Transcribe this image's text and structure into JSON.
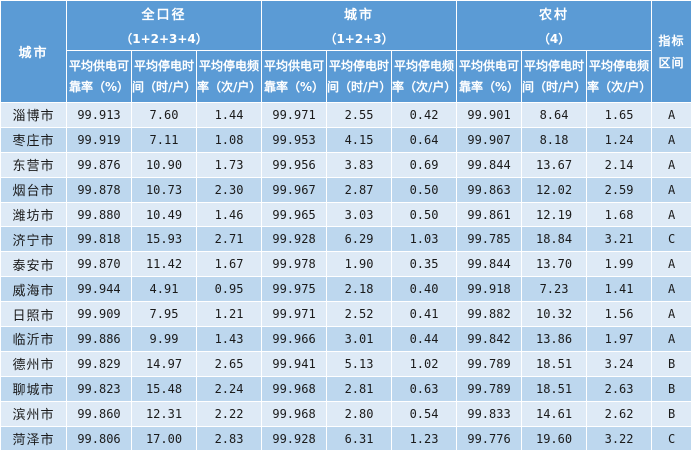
{
  "chart_data": {
    "type": "table",
    "corner_header": "城市",
    "column_groups": [
      {
        "title": "全口径",
        "subtitle": "（1+2+3+4）"
      },
      {
        "title": "城市",
        "subtitle": "（1+2+3）"
      },
      {
        "title": "农村",
        "subtitle": "（4）"
      }
    ],
    "metric_headers": [
      {
        "full": "平均供电可靠率（%）",
        "line1": "平均供电可",
        "line2": "靠率（%）"
      },
      {
        "full": "平均停电时间（时/户）",
        "line1": "平均停电时",
        "line2": "间（时/户）"
      },
      {
        "full": "平均停电频率（次/户）",
        "line1": "平均停电频",
        "line2": "率（次/户）"
      }
    ],
    "index_header": {
      "full": "指标区间",
      "line1": "指标",
      "line2": "区间"
    },
    "rows": [
      {
        "city": "淄博市",
        "values": [
          "99.913",
          "7.60",
          "1.44",
          "99.971",
          "2.55",
          "0.42",
          "99.901",
          "8.64",
          "1.65"
        ],
        "grade": "A"
      },
      {
        "city": "枣庄市",
        "values": [
          "99.919",
          "7.11",
          "1.08",
          "99.953",
          "4.15",
          "0.64",
          "99.907",
          "8.18",
          "1.24"
        ],
        "grade": "A"
      },
      {
        "city": "东营市",
        "values": [
          "99.876",
          "10.90",
          "1.73",
          "99.956",
          "3.83",
          "0.69",
          "99.844",
          "13.67",
          "2.14"
        ],
        "grade": "A"
      },
      {
        "city": "烟台市",
        "values": [
          "99.878",
          "10.73",
          "2.30",
          "99.967",
          "2.87",
          "0.50",
          "99.863",
          "12.02",
          "2.59"
        ],
        "grade": "A"
      },
      {
        "city": "潍坊市",
        "values": [
          "99.880",
          "10.49",
          "1.46",
          "99.965",
          "3.03",
          "0.50",
          "99.861",
          "12.19",
          "1.68"
        ],
        "grade": "A"
      },
      {
        "city": "济宁市",
        "values": [
          "99.818",
          "15.93",
          "2.71",
          "99.928",
          "6.29",
          "1.03",
          "99.785",
          "18.84",
          "3.21"
        ],
        "grade": "C"
      },
      {
        "city": "泰安市",
        "values": [
          "99.870",
          "11.42",
          "1.67",
          "99.978",
          "1.90",
          "0.35",
          "99.844",
          "13.70",
          "1.99"
        ],
        "grade": "A"
      },
      {
        "city": "威海市",
        "values": [
          "99.944",
          "4.91",
          "0.95",
          "99.975",
          "2.18",
          "0.40",
          "99.918",
          "7.23",
          "1.41"
        ],
        "grade": "A"
      },
      {
        "city": "日照市",
        "values": [
          "99.909",
          "7.95",
          "1.21",
          "99.971",
          "2.52",
          "0.41",
          "99.882",
          "10.32",
          "1.56"
        ],
        "grade": "A"
      },
      {
        "city": "临沂市",
        "values": [
          "99.886",
          "9.99",
          "1.43",
          "99.966",
          "3.01",
          "0.44",
          "99.842",
          "13.86",
          "1.97"
        ],
        "grade": "A"
      },
      {
        "city": "德州市",
        "values": [
          "99.829",
          "14.97",
          "2.65",
          "99.941",
          "5.13",
          "1.02",
          "99.789",
          "18.51",
          "3.24"
        ],
        "grade": "B"
      },
      {
        "city": "聊城市",
        "values": [
          "99.823",
          "15.48",
          "2.24",
          "99.968",
          "2.81",
          "0.63",
          "99.789",
          "18.51",
          "2.63"
        ],
        "grade": "B"
      },
      {
        "city": "滨州市",
        "values": [
          "99.860",
          "12.31",
          "2.22",
          "99.968",
          "2.80",
          "0.54",
          "99.833",
          "14.61",
          "2.62"
        ],
        "grade": "B"
      },
      {
        "city": "菏泽市",
        "values": [
          "99.806",
          "17.00",
          "2.83",
          "99.928",
          "6.31",
          "1.23",
          "99.776",
          "19.60",
          "3.22"
        ],
        "grade": "C"
      }
    ]
  },
  "colors": {
    "header_bg": "#5B9BD5",
    "header_text": "#FFFFFF",
    "row_odd_bg": "#DEEAF6",
    "row_even_bg": "#BDD7EE",
    "cell_text": "#1A1A1A",
    "border": "#FFFFFF"
  }
}
